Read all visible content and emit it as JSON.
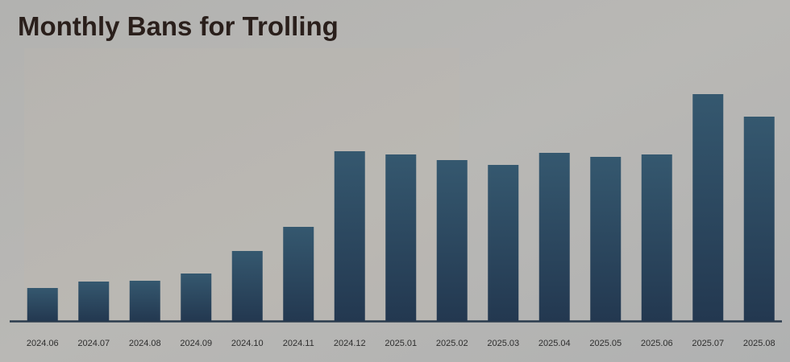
{
  "chart_data": {
    "type": "bar",
    "title": "Monthly Bans for Trolling",
    "categories": [
      "2024.06",
      "2024.07",
      "2024.08",
      "2024.09",
      "2024.10",
      "2024.11",
      "2024.12",
      "2025.01",
      "2025.02",
      "2025.03",
      "2025.04",
      "2025.05",
      "2025.06",
      "2025.07",
      "2025.08"
    ],
    "values": [
      41,
      49,
      50,
      59,
      87,
      117,
      211,
      207,
      200,
      194,
      209,
      204,
      207,
      282,
      254
    ],
    "color": "#35586f",
    "ylim": [
      0,
      300
    ],
    "grid": false
  }
}
